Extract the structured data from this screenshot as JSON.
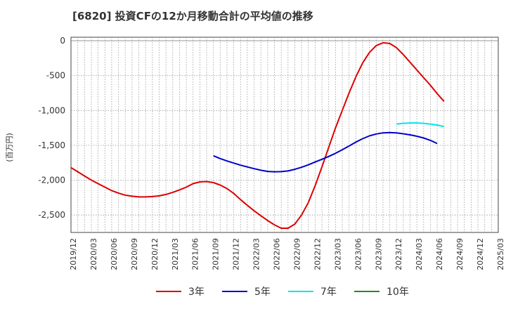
{
  "header": {
    "title": "[6820]  投資CFの12か月移動合計の平均値の推移"
  },
  "chart_data": {
    "type": "line",
    "title": "[6820]  投資CFの12か月移動合計の平均値の推移",
    "ylabel": "(百万円)",
    "xlabel": "",
    "ylim": [
      -2750,
      50
    ],
    "y_ticks": [
      0,
      -500,
      -1000,
      -1500,
      -2000,
      -2500
    ],
    "y_tick_labels": [
      "0",
      "-500",
      "-1,000",
      "-1,500",
      "-2,000",
      "-2,500"
    ],
    "x_tick_labels": [
      "2019/12",
      "2020/03",
      "2020/06",
      "2020/09",
      "2020/12",
      "2021/03",
      "2021/06",
      "2021/09",
      "2021/12",
      "2022/03",
      "2022/06",
      "2022/09",
      "2022/12",
      "2023/03",
      "2023/06",
      "2023/09",
      "2023/12",
      "2024/03",
      "2024/06",
      "2024/09",
      "2024/12",
      "2025/03"
    ],
    "grid": true,
    "legend_position": "bottom",
    "series": [
      {
        "name": "3年",
        "color": "#dd0000",
        "data": [
          [
            "2019/12",
            -1820
          ],
          [
            "2020/01",
            -1880
          ],
          [
            "2020/02",
            -1940
          ],
          [
            "2020/03",
            -2000
          ],
          [
            "2020/04",
            -2050
          ],
          [
            "2020/05",
            -2100
          ],
          [
            "2020/06",
            -2150
          ],
          [
            "2020/07",
            -2185
          ],
          [
            "2020/08",
            -2215
          ],
          [
            "2020/09",
            -2230
          ],
          [
            "2020/10",
            -2240
          ],
          [
            "2020/11",
            -2240
          ],
          [
            "2020/12",
            -2235
          ],
          [
            "2021/01",
            -2225
          ],
          [
            "2021/02",
            -2205
          ],
          [
            "2021/03",
            -2175
          ],
          [
            "2021/04",
            -2140
          ],
          [
            "2021/05",
            -2100
          ],
          [
            "2021/06",
            -2050
          ],
          [
            "2021/07",
            -2025
          ],
          [
            "2021/08",
            -2020
          ],
          [
            "2021/09",
            -2035
          ],
          [
            "2021/10",
            -2070
          ],
          [
            "2021/11",
            -2120
          ],
          [
            "2021/12",
            -2190
          ],
          [
            "2022/01",
            -2280
          ],
          [
            "2022/02",
            -2360
          ],
          [
            "2022/03",
            -2440
          ],
          [
            "2022/04",
            -2510
          ],
          [
            "2022/05",
            -2580
          ],
          [
            "2022/06",
            -2640
          ],
          [
            "2022/07",
            -2690
          ],
          [
            "2022/08",
            -2690
          ],
          [
            "2022/09",
            -2630
          ],
          [
            "2022/10",
            -2500
          ],
          [
            "2022/11",
            -2320
          ],
          [
            "2022/12",
            -2080
          ],
          [
            "2023/01",
            -1810
          ],
          [
            "2023/02",
            -1530
          ],
          [
            "2023/03",
            -1250
          ],
          [
            "2023/04",
            -1000
          ],
          [
            "2023/05",
            -750
          ],
          [
            "2023/06",
            -520
          ],
          [
            "2023/07",
            -320
          ],
          [
            "2023/08",
            -170
          ],
          [
            "2023/09",
            -70
          ],
          [
            "2023/10",
            -30
          ],
          [
            "2023/11",
            -40
          ],
          [
            "2023/12",
            -100
          ],
          [
            "2024/01",
            -200
          ],
          [
            "2024/02",
            -310
          ],
          [
            "2024/03",
            -420
          ],
          [
            "2024/04",
            -530
          ],
          [
            "2024/05",
            -640
          ],
          [
            "2024/06",
            -760
          ],
          [
            "2024/07",
            -870
          ]
        ]
      },
      {
        "name": "5年",
        "color": "#0000cc",
        "data": [
          [
            "2021/09",
            -1650
          ],
          [
            "2021/10",
            -1690
          ],
          [
            "2021/11",
            -1725
          ],
          [
            "2021/12",
            -1755
          ],
          [
            "2022/01",
            -1785
          ],
          [
            "2022/02",
            -1810
          ],
          [
            "2022/03",
            -1835
          ],
          [
            "2022/04",
            -1858
          ],
          [
            "2022/05",
            -1875
          ],
          [
            "2022/06",
            -1880
          ],
          [
            "2022/07",
            -1878
          ],
          [
            "2022/08",
            -1868
          ],
          [
            "2022/09",
            -1845
          ],
          [
            "2022/10",
            -1815
          ],
          [
            "2022/11",
            -1780
          ],
          [
            "2022/12",
            -1740
          ],
          [
            "2023/01",
            -1700
          ],
          [
            "2023/02",
            -1660
          ],
          [
            "2023/03",
            -1615
          ],
          [
            "2023/04",
            -1565
          ],
          [
            "2023/05",
            -1510
          ],
          [
            "2023/06",
            -1455
          ],
          [
            "2023/07",
            -1405
          ],
          [
            "2023/08",
            -1365
          ],
          [
            "2023/09",
            -1338
          ],
          [
            "2023/10",
            -1322
          ],
          [
            "2023/11",
            -1318
          ],
          [
            "2023/12",
            -1322
          ],
          [
            "2024/01",
            -1335
          ],
          [
            "2024/02",
            -1350
          ],
          [
            "2024/03",
            -1370
          ],
          [
            "2024/04",
            -1395
          ],
          [
            "2024/05",
            -1430
          ],
          [
            "2024/06",
            -1475
          ]
        ]
      },
      {
        "name": "7年",
        "color": "#00e5ee",
        "data": [
          [
            "2023/12",
            -1195
          ],
          [
            "2024/01",
            -1185
          ],
          [
            "2024/02",
            -1180
          ],
          [
            "2024/03",
            -1180
          ],
          [
            "2024/04",
            -1185
          ],
          [
            "2024/05",
            -1195
          ],
          [
            "2024/06",
            -1210
          ],
          [
            "2024/07",
            -1230
          ]
        ]
      },
      {
        "name": "10年",
        "color": "#228b22",
        "data": []
      }
    ]
  }
}
